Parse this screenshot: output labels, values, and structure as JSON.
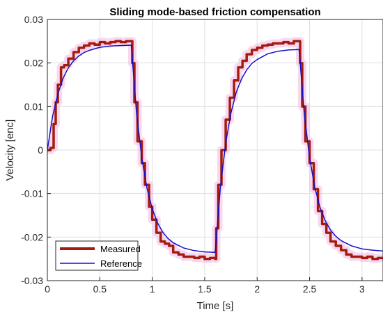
{
  "chart_data": {
    "type": "line",
    "title": "Sliding mode-based friction compensation",
    "xlabel": "Time [s]",
    "ylabel": "Velocity [enc]",
    "xlim": [
      0,
      3.2
    ],
    "ylim": [
      -0.03,
      0.03
    ],
    "xticks": [
      0,
      0.5,
      1,
      1.5,
      2,
      2.5,
      3
    ],
    "xtick_labels": [
      "0",
      "0.5",
      "1",
      "1.5",
      "2",
      "2.5",
      "3"
    ],
    "yticks": [
      0.03,
      0.02,
      0.01,
      0,
      -0.01,
      -0.02,
      -0.03
    ],
    "ytick_labels": [
      "0.03",
      "0.02",
      "0.01",
      "0",
      "-0.01",
      "-0.02",
      "-0.03"
    ],
    "grid": true,
    "legend_location": "bottom-left",
    "series": [
      {
        "name": "Measured",
        "color": "#a51c0e",
        "x": [
          0,
          0.03,
          0.06,
          0.08,
          0.1,
          0.13,
          0.16,
          0.2,
          0.25,
          0.3,
          0.35,
          0.4,
          0.45,
          0.5,
          0.55,
          0.6,
          0.65,
          0.7,
          0.75,
          0.8,
          0.81,
          0.83,
          0.86,
          0.9,
          0.93,
          0.97,
          1.0,
          1.04,
          1.08,
          1.12,
          1.16,
          1.2,
          1.25,
          1.3,
          1.35,
          1.4,
          1.45,
          1.5,
          1.55,
          1.6,
          1.61,
          1.63,
          1.66,
          1.7,
          1.74,
          1.78,
          1.82,
          1.86,
          1.9,
          1.95,
          2.0,
          2.05,
          2.1,
          2.15,
          2.2,
          2.25,
          2.3,
          2.35,
          2.4,
          2.41,
          2.43,
          2.46,
          2.5,
          2.54,
          2.58,
          2.62,
          2.66,
          2.7,
          2.75,
          2.8,
          2.85,
          2.9,
          2.95,
          3.0,
          3.05,
          3.1,
          3.15,
          3.2
        ],
        "y": [
          0,
          0.0005,
          0.006,
          0.011,
          0.015,
          0.019,
          0.0195,
          0.021,
          0.0225,
          0.0235,
          0.024,
          0.0245,
          0.0242,
          0.0248,
          0.0245,
          0.0248,
          0.025,
          0.0248,
          0.025,
          0.025,
          0.02,
          0.011,
          0.002,
          -0.003,
          -0.008,
          -0.013,
          -0.016,
          -0.019,
          -0.021,
          -0.0215,
          -0.022,
          -0.0235,
          -0.024,
          -0.0245,
          -0.0245,
          -0.0248,
          -0.0245,
          -0.025,
          -0.0248,
          -0.025,
          -0.018,
          -0.008,
          0,
          0.007,
          0.012,
          0.016,
          0.019,
          0.0205,
          0.022,
          0.023,
          0.0235,
          0.024,
          0.0242,
          0.0245,
          0.0245,
          0.0248,
          0.0245,
          0.025,
          0.025,
          0.02,
          0.01,
          0.002,
          -0.003,
          -0.009,
          -0.014,
          -0.017,
          -0.019,
          -0.021,
          -0.022,
          -0.023,
          -0.024,
          -0.0245,
          -0.0245,
          -0.0248,
          -0.0245,
          -0.025,
          -0.0248,
          -0.025
        ]
      },
      {
        "name": "Reference",
        "color": "#1010c8",
        "x": [
          0,
          0.05,
          0.1,
          0.15,
          0.2,
          0.25,
          0.3,
          0.35,
          0.4,
          0.5,
          0.6,
          0.7,
          0.8,
          0.85,
          0.9,
          0.95,
          1.0,
          1.05,
          1.1,
          1.15,
          1.2,
          1.3,
          1.4,
          1.5,
          1.6,
          1.65,
          1.7,
          1.75,
          1.8,
          1.85,
          1.9,
          1.95,
          2.0,
          2.1,
          2.2,
          2.3,
          2.4,
          2.45,
          2.5,
          2.55,
          2.6,
          2.65,
          2.7,
          2.75,
          2.8,
          2.9,
          3.0,
          3.1,
          3.2
        ],
        "y": [
          0,
          0.0077,
          0.0129,
          0.0165,
          0.0189,
          0.0205,
          0.0216,
          0.0224,
          0.0229,
          0.0236,
          0.0239,
          0.024,
          0.0241,
          0.0086,
          -0.0018,
          -0.0088,
          -0.0135,
          -0.0167,
          -0.0189,
          -0.0203,
          -0.0213,
          -0.0225,
          -0.0231,
          -0.0234,
          -0.0235,
          -0.0085,
          0.0016,
          0.0085,
          0.0132,
          0.0163,
          0.0184,
          0.0199,
          0.0208,
          0.0221,
          0.0227,
          0.023,
          0.0231,
          0.0082,
          -0.0018,
          -0.0086,
          -0.0132,
          -0.0163,
          -0.0184,
          -0.0198,
          -0.0208,
          -0.022,
          -0.0227,
          -0.023,
          -0.0232
        ]
      }
    ]
  }
}
